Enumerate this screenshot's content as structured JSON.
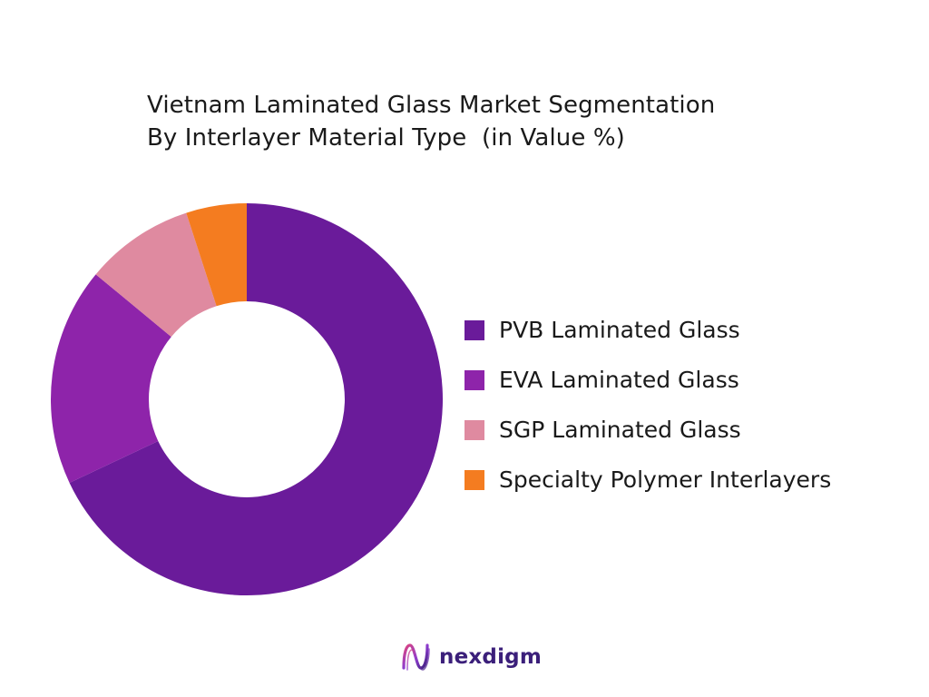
{
  "chart_data": {
    "type": "pie",
    "donut": true,
    "title_lines": [
      "Vietnam Laminated Glass Market Segmentation",
      "By Interlayer Material Type  (in Value %)"
    ],
    "categories": [
      "PVB Laminated Glass",
      "EVA Laminated Glass",
      "SGP Laminated Glass",
      "Specialty Polymer Interlayers"
    ],
    "values": [
      68,
      18,
      9,
      5
    ],
    "colors": [
      "#6a1b9a",
      "#8e24aa",
      "#df8aa0",
      "#f47c20"
    ],
    "legend_position": "right"
  },
  "brand": {
    "name": "nexdigm"
  }
}
